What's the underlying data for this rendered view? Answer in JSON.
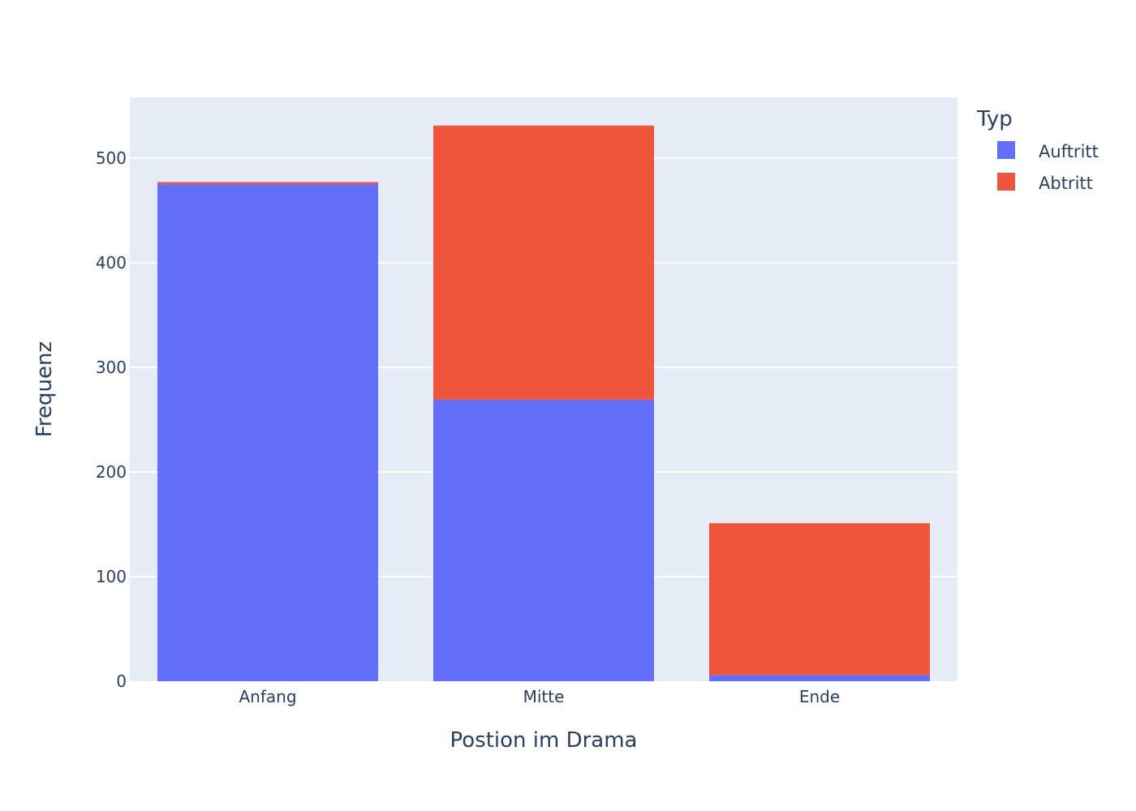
{
  "chart_data": {
    "type": "bar",
    "barmode": "stack",
    "categories": [
      "Anfang",
      "Mitte",
      "Ende"
    ],
    "series": [
      {
        "name": "Auftritt",
        "values": [
          475,
          269,
          6
        ],
        "color": "#636efa"
      },
      {
        "name": "Abtritt",
        "values": [
          2,
          262,
          145
        ],
        "color": "#ef553b"
      }
    ],
    "xlabel": "Postion im Drama",
    "ylabel": "Frequenz",
    "ylim": [
      0,
      558
    ],
    "yticks": [
      0,
      100,
      200,
      300,
      400,
      500
    ],
    "grid": true,
    "legend": {
      "title": "Typ",
      "position": "top-right"
    },
    "plot_background": "#e5ecf6"
  }
}
